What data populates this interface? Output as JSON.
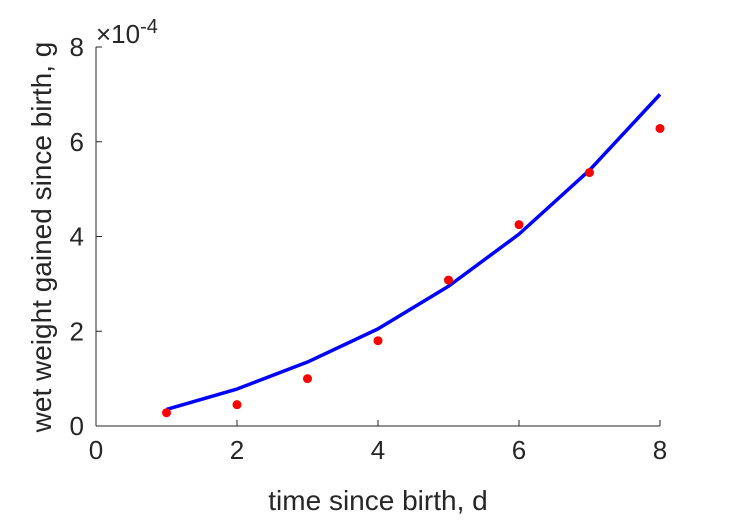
{
  "chart_data": {
    "type": "scatter",
    "xlabel": "time since birth, d",
    "ylabel": "wet weight gained since birth, g",
    "xlim": [
      0,
      8
    ],
    "ylim": [
      0,
      8
    ],
    "y_multiplier": "×10",
    "y_exponent": "-4",
    "xticks": [
      "0",
      "2",
      "4",
      "6",
      "8"
    ],
    "yticks": [
      "0",
      "2",
      "4",
      "6",
      "8"
    ],
    "grid": false,
    "series": [
      {
        "type": "scatter",
        "color": "#ff0000",
        "x": [
          1,
          2,
          3,
          4,
          5,
          6,
          7,
          8
        ],
        "y": [
          0.28,
          0.45,
          1.0,
          1.8,
          3.08,
          4.25,
          5.35,
          6.28
        ]
      },
      {
        "type": "line",
        "color": "#0000ff",
        "x": [
          1,
          2,
          3,
          4,
          5,
          6,
          7,
          8
        ],
        "y": [
          0.35,
          0.78,
          1.35,
          2.05,
          2.95,
          4.05,
          5.4,
          7.0
        ]
      }
    ]
  }
}
